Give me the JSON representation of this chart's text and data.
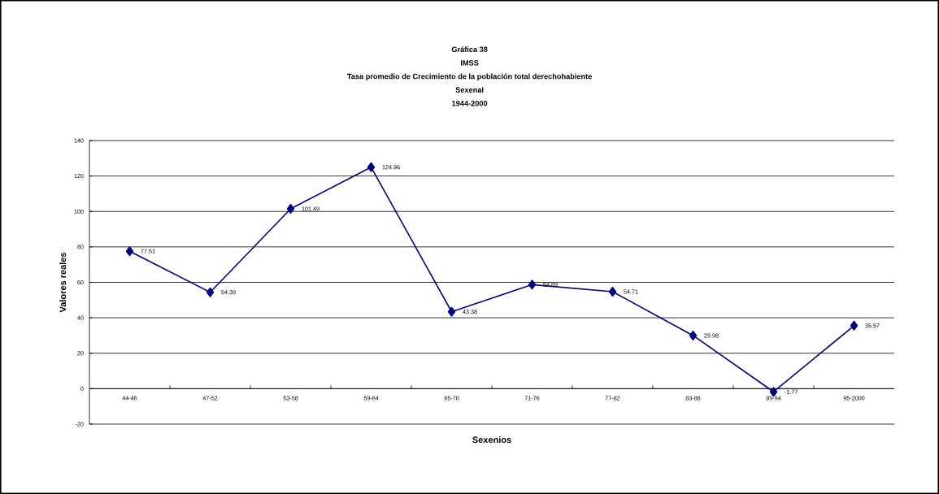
{
  "chart_data": {
    "type": "line",
    "title": "Gráfica 38",
    "subtitle": "IMSS",
    "annotations": [
      "Tasa promedio de  Crecimiento de la población total derechohabiente",
      "Sexenal",
      "1944-2000"
    ],
    "xlabel": "Sexenios",
    "ylabel": "Valores reales",
    "categories": [
      "44-46",
      "47-52",
      "53-58",
      "59-64",
      "65-70",
      "71-76",
      "77-82",
      "83-88",
      "89-94",
      "95-2000"
    ],
    "values": [
      77.51,
      54.39,
      101.49,
      124.96,
      43.38,
      58.69,
      54.71,
      29.98,
      -1.77,
      35.57
    ],
    "color": "#000080",
    "marker": "diamond",
    "line_style": "solid",
    "data_labels": true,
    "grid": "y",
    "ylim": [
      -20,
      140
    ],
    "yticks": [
      -20,
      0,
      20,
      40,
      60,
      80,
      100,
      120,
      140
    ]
  }
}
